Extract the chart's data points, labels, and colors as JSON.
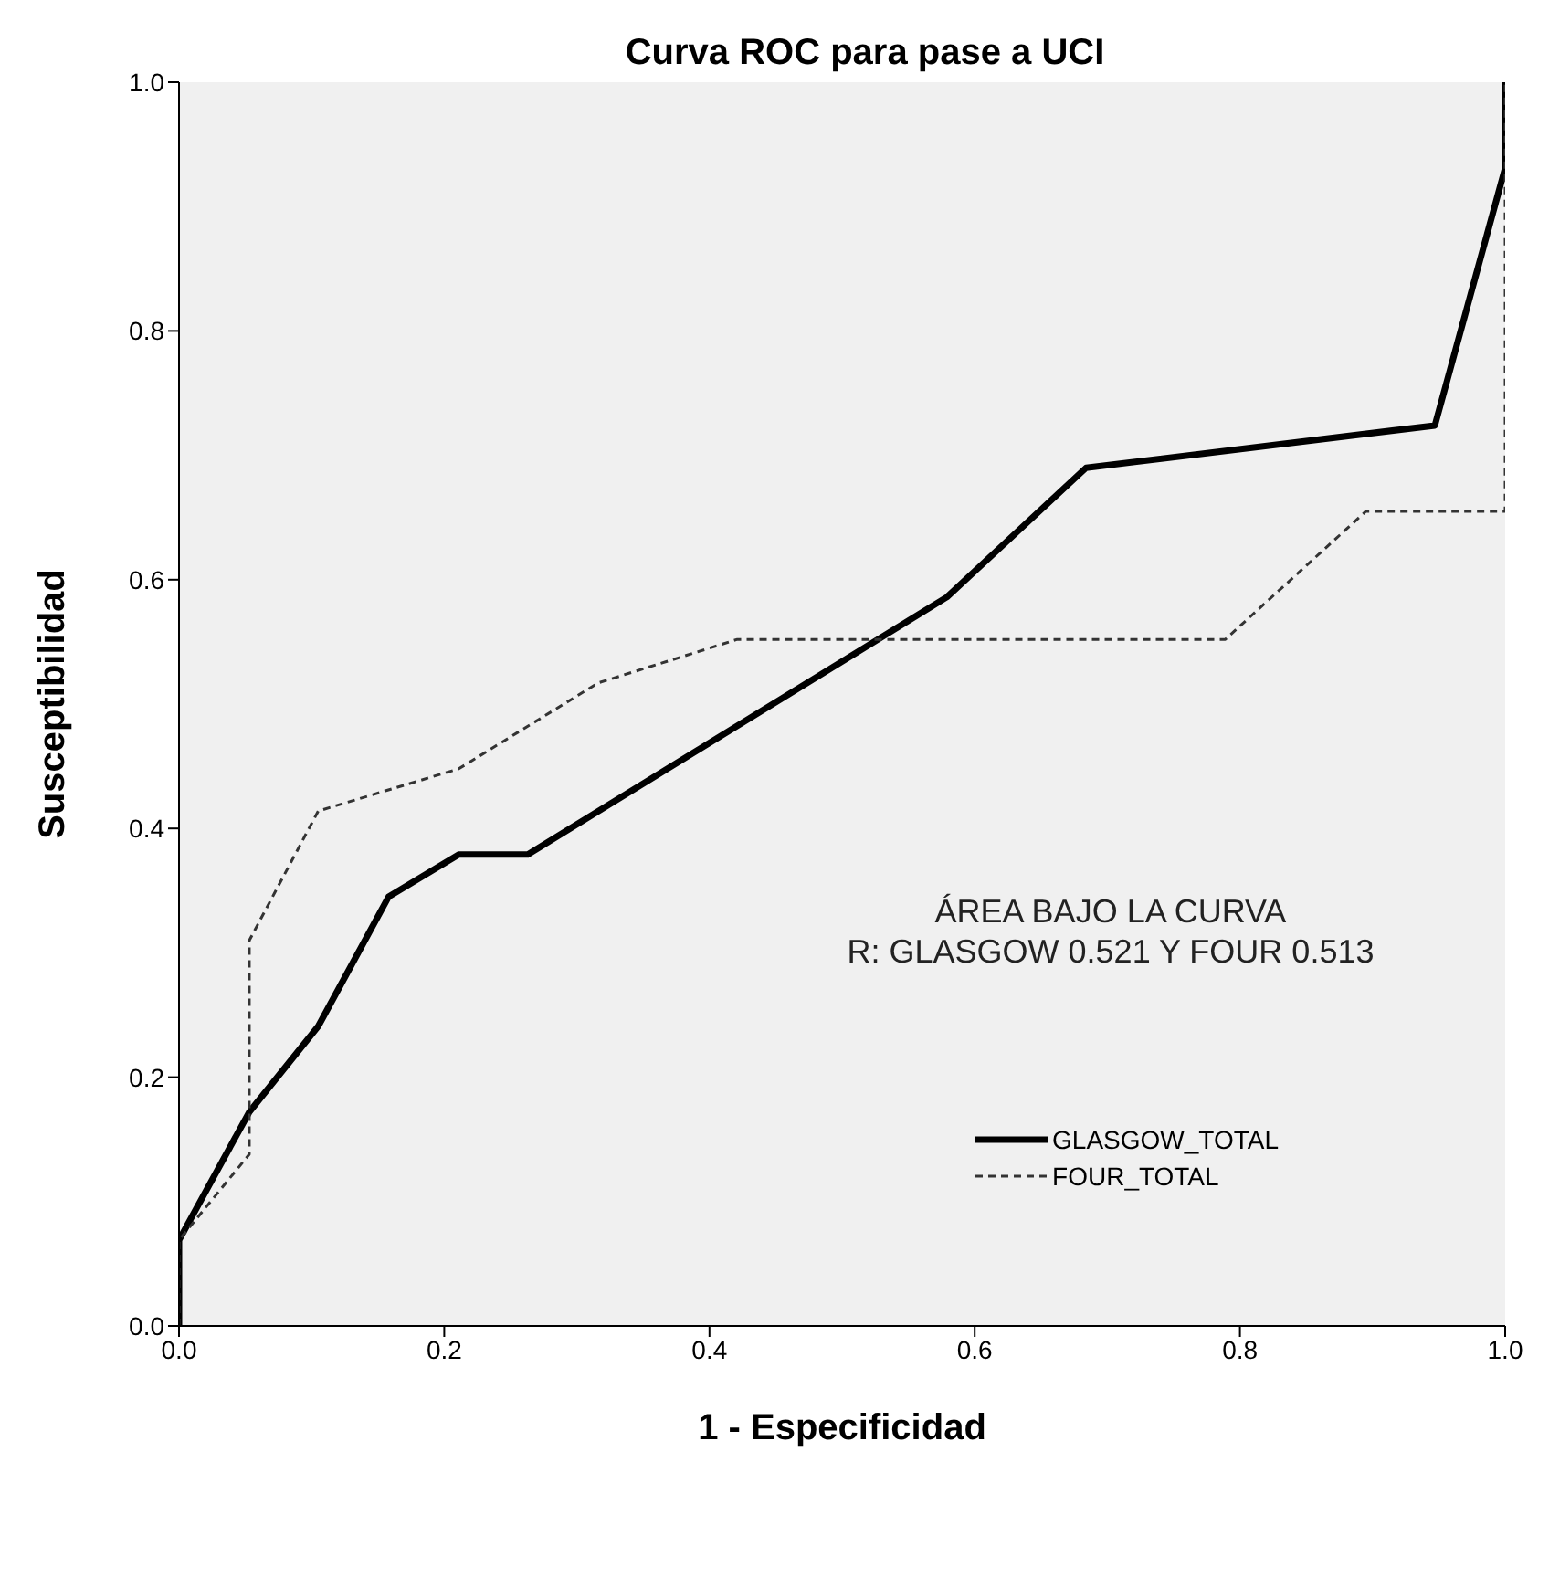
{
  "chart_data": {
    "type": "line",
    "title": "Curva ROC para pase a UCI",
    "xlabel": "1 - Especificidad",
    "ylabel": "Susceptibilidad",
    "annotations": [
      "ÁREA BAJO LA CURVA",
      "R: GLASGOW 0.521 Y FOUR 0.513"
    ],
    "series": [
      {
        "name": "GLASGOW_TOTAL",
        "color": "#000000",
        "line_style": "solid",
        "x": [
          0,
          0,
          0.053,
          0.105,
          0.158,
          0.211,
          0.263,
          0.579,
          0.684,
          0.947,
          1,
          1
        ],
        "values": [
          0,
          0.069,
          0.172,
          0.241,
          0.345,
          0.379,
          0.379,
          0.586,
          0.69,
          0.724,
          0.931,
          1
        ]
      },
      {
        "name": "FOUR_TOTAL",
        "color": "#333333",
        "line_style": "dashed",
        "x": [
          0,
          0,
          0.053,
          0.053,
          0.105,
          0.211,
          0.316,
          0.421,
          0.789,
          0.895,
          1,
          1
        ],
        "values": [
          0,
          0.069,
          0.138,
          0.31,
          0.414,
          0.448,
          0.517,
          0.552,
          0.552,
          0.655,
          0.655,
          1
        ]
      }
    ],
    "xlim": [
      0,
      1
    ],
    "ylim": [
      0,
      1
    ],
    "xticks": [
      {
        "value": 0,
        "label": "0.0"
      },
      {
        "value": 0.2,
        "label": "0.2"
      },
      {
        "value": 0.4,
        "label": "0.4"
      },
      {
        "value": 0.6,
        "label": "0.6"
      },
      {
        "value": 0.8,
        "label": "0.8"
      },
      {
        "value": 1,
        "label": "1.0"
      }
    ],
    "yticks": [
      {
        "value": 0,
        "label": "0.0"
      },
      {
        "value": 0.2,
        "label": "0.2"
      },
      {
        "value": 0.4,
        "label": "0.4"
      },
      {
        "value": 0.6,
        "label": "0.6"
      },
      {
        "value": 0.8,
        "label": "0.8"
      },
      {
        "value": 1,
        "label": "1.0"
      }
    ],
    "grid": false,
    "legend": "bottom right",
    "marker": "none"
  }
}
